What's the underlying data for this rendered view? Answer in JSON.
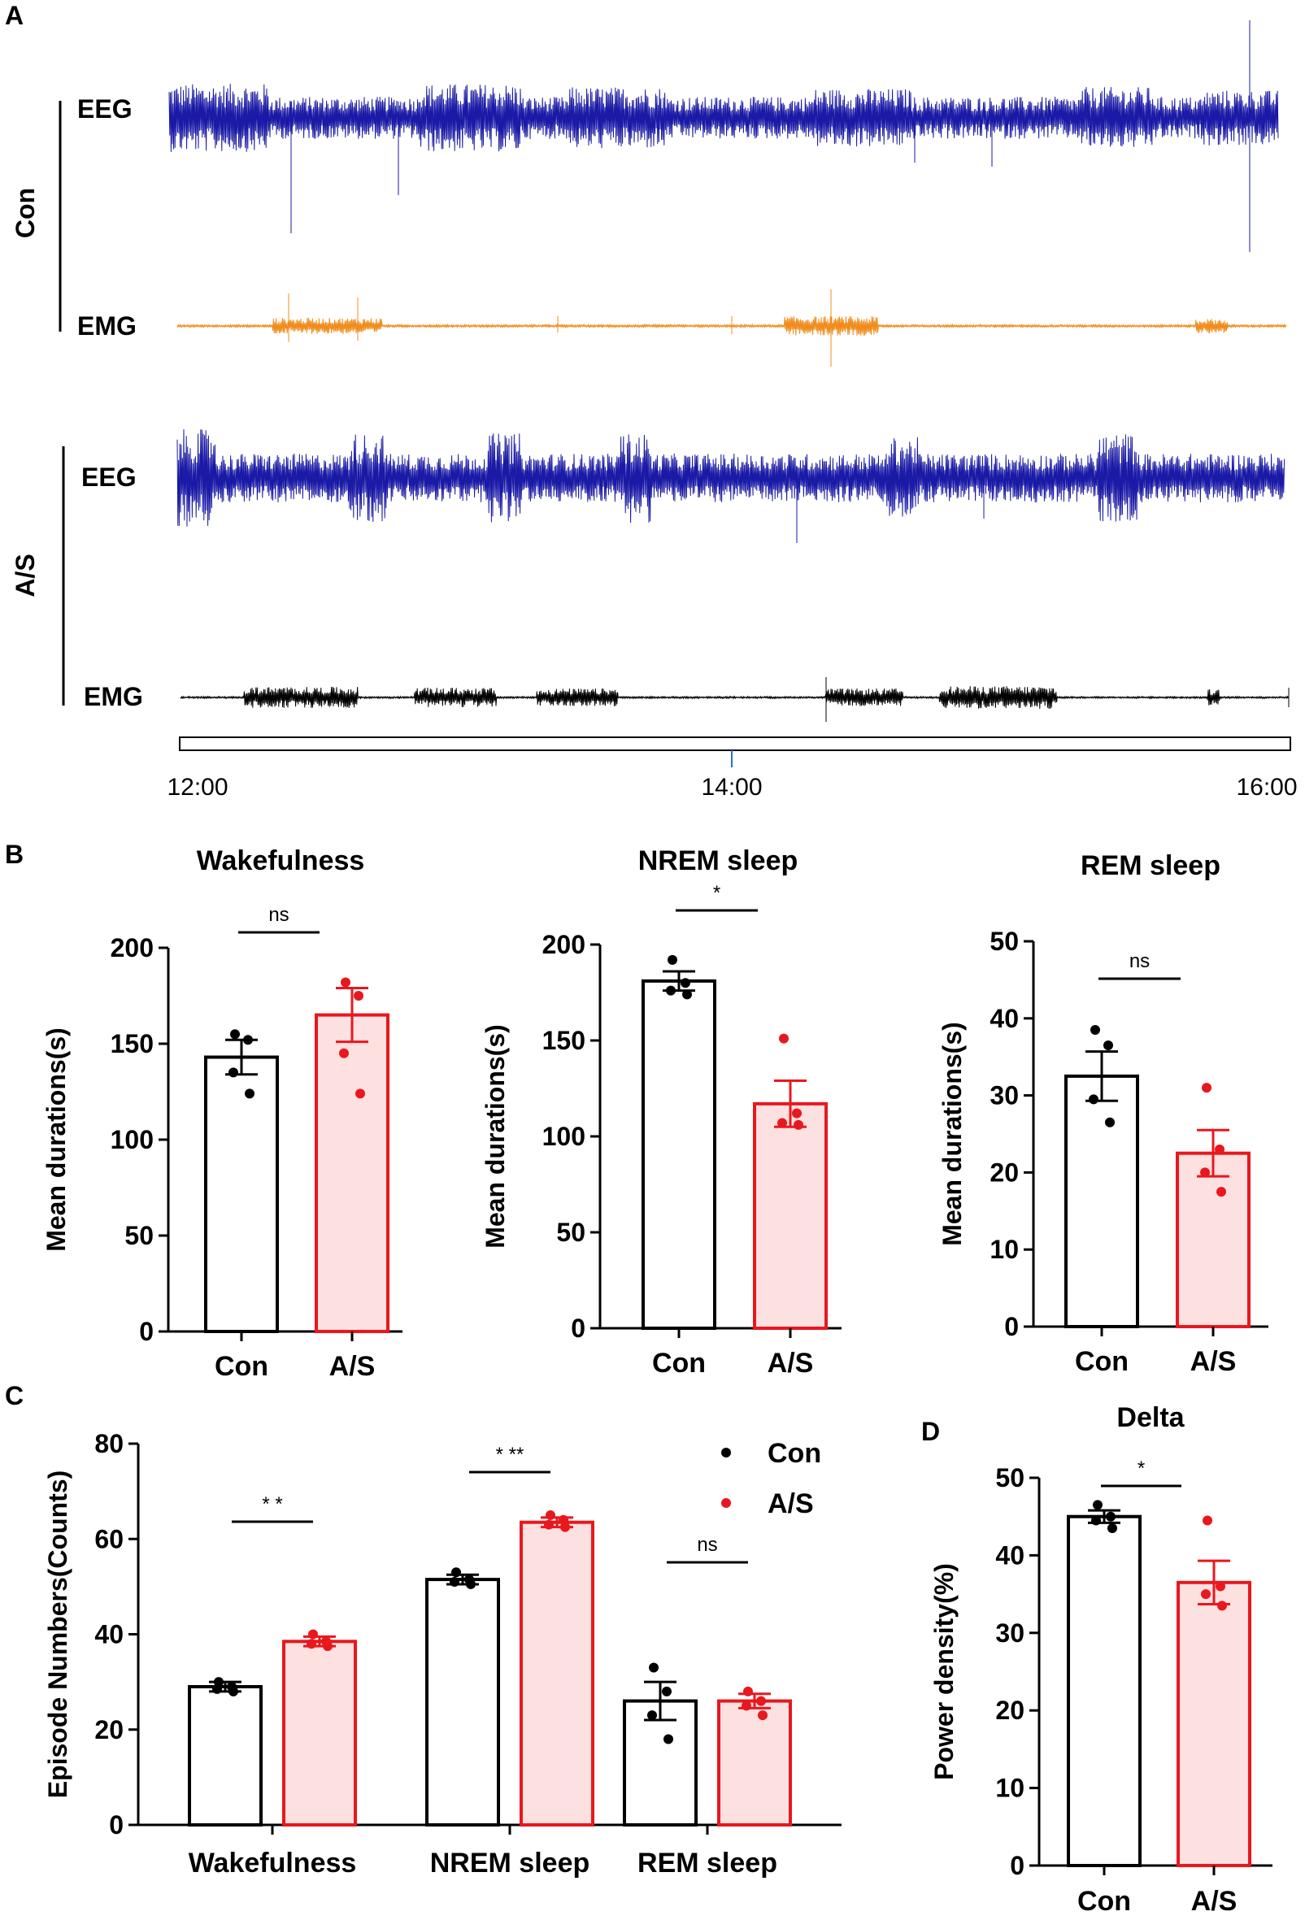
{
  "panelA": {
    "label": "A",
    "groups": [
      {
        "name": "Con",
        "eeg_label": "EEG",
        "emg_label": "EMG",
        "eeg_color": "#1a1aa6",
        "emg_color": "#f08c1c"
      },
      {
        "name": "A/S",
        "eeg_label": "EEG",
        "emg_label": "EMG",
        "eeg_color": "#1a1aa6",
        "emg_color": "#000000"
      }
    ],
    "time_ticks": [
      "12:00",
      "14:00",
      "16:00"
    ]
  },
  "panelB": {
    "label": "B"
  },
  "panelC": {
    "label": "C"
  },
  "panelD": {
    "label": "D"
  },
  "colors": {
    "con": "#000000",
    "as": "#e8181e",
    "as_fill": "#fde0e0"
  },
  "chart_data": [
    {
      "id": "wake",
      "type": "bar",
      "title": "Wakefulness",
      "ylabel": "Mean durations(s)",
      "ylim": [
        0,
        200
      ],
      "yticks": [
        0,
        50,
        100,
        150,
        200
      ],
      "categories": [
        "Con",
        "A/S"
      ],
      "values": [
        143,
        165
      ],
      "errors": [
        9,
        14
      ],
      "points": [
        [
          155,
          152,
          135,
          124
        ],
        [
          182,
          175,
          145,
          124
        ]
      ],
      "significance": "ns"
    },
    {
      "id": "nrem",
      "type": "bar",
      "title": "NREM sleep",
      "ylabel": "Mean durations(s)",
      "ylim": [
        0,
        200
      ],
      "yticks": [
        0,
        50,
        100,
        150,
        200
      ],
      "categories": [
        "Con",
        "A/S"
      ],
      "values": [
        181,
        117
      ],
      "errors": [
        5,
        12
      ],
      "points": [
        [
          192,
          180,
          176,
          174
        ],
        [
          151,
          112,
          107,
          106
        ]
      ],
      "significance": "*"
    },
    {
      "id": "rem",
      "type": "bar",
      "title": "REM sleep",
      "ylabel": "Mean durations(s)",
      "ylim": [
        0,
        50
      ],
      "yticks": [
        0,
        10,
        20,
        30,
        40,
        50
      ],
      "categories": [
        "Con",
        "A/S"
      ],
      "values": [
        32.5,
        22.5
      ],
      "errors": [
        3.2,
        3
      ],
      "points": [
        [
          38.5,
          36.5,
          29.5,
          26.5
        ],
        [
          31,
          23,
          20,
          17.5
        ]
      ],
      "significance": "ns"
    },
    {
      "id": "episodes",
      "type": "bar",
      "ylabel": "Episode Numbers(Counts)",
      "ylim": [
        0,
        80
      ],
      "yticks": [
        0,
        20,
        40,
        60,
        80
      ],
      "categories": [
        "Wakefulness",
        "NREM sleep",
        "REM sleep"
      ],
      "legend": {
        "position": "top-right"
      },
      "series": [
        {
          "name": "Con",
          "values": [
            29,
            51.5,
            26
          ],
          "errors": [
            1,
            1,
            4
          ],
          "points": [
            [
              30,
              29,
              28.5,
              28
            ],
            [
              53,
              51.5,
              51,
              50.5
            ],
            [
              33,
              28,
              23,
              18
            ]
          ]
        },
        {
          "name": "A/S",
          "values": [
            38.5,
            63.5,
            26
          ],
          "errors": [
            1,
            1,
            1.5
          ],
          "points": [
            [
              40,
              38.5,
              38,
              37.5
            ],
            [
              65,
              64,
              63,
              62.5
            ],
            [
              28,
              26,
              25,
              23
            ]
          ]
        }
      ],
      "significance": [
        "* *",
        "* **",
        "ns"
      ]
    },
    {
      "id": "delta",
      "type": "bar",
      "title": "Delta",
      "ylabel": "Power density(%)",
      "ylim": [
        0,
        50
      ],
      "yticks": [
        0,
        10,
        20,
        30,
        40,
        50
      ],
      "categories": [
        "Con",
        "A/S"
      ],
      "values": [
        45,
        36.5
      ],
      "errors": [
        0.8,
        2.8
      ],
      "points": [
        [
          46.5,
          45,
          44.5,
          43.5
        ],
        [
          44.5,
          36,
          35,
          33.5
        ]
      ],
      "significance": "*"
    }
  ]
}
